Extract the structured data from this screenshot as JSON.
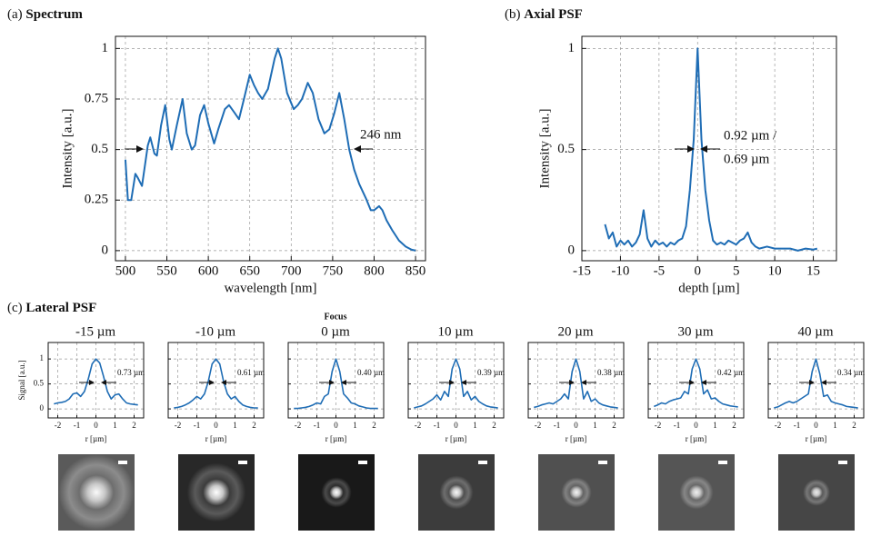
{
  "chart_data": [
    {
      "type": "line",
      "label": "(a)",
      "title": "Spectrum",
      "xlabel": "wavelength [nm]",
      "ylabel": "Intensity [a.u.]",
      "color": "#1f6db5",
      "grid": true,
      "x": [
        500,
        503,
        507,
        512,
        515,
        520,
        527,
        530,
        535,
        538,
        543,
        548,
        553,
        556,
        562,
        569,
        574,
        580,
        584,
        590,
        595,
        600,
        607,
        612,
        620,
        625,
        632,
        637,
        643,
        650,
        655,
        660,
        665,
        672,
        680,
        684,
        688,
        695,
        703,
        708,
        713,
        720,
        726,
        733,
        740,
        746,
        752,
        758,
        764,
        770,
        776,
        782,
        790,
        796,
        800,
        806,
        810,
        815,
        822,
        830,
        838,
        845,
        850
      ],
      "values": [
        0.45,
        0.25,
        0.25,
        0.38,
        0.36,
        0.32,
        0.52,
        0.56,
        0.48,
        0.47,
        0.62,
        0.72,
        0.55,
        0.5,
        0.62,
        0.75,
        0.58,
        0.5,
        0.52,
        0.67,
        0.72,
        0.63,
        0.53,
        0.6,
        0.7,
        0.72,
        0.68,
        0.65,
        0.75,
        0.87,
        0.82,
        0.78,
        0.75,
        0.8,
        0.95,
        1.0,
        0.95,
        0.78,
        0.7,
        0.72,
        0.75,
        0.83,
        0.78,
        0.65,
        0.58,
        0.6,
        0.68,
        0.78,
        0.65,
        0.5,
        0.4,
        0.33,
        0.26,
        0.2,
        0.2,
        0.22,
        0.2,
        0.15,
        0.1,
        0.05,
        0.02,
        0.005,
        0
      ],
      "xlim": [
        488,
        862
      ],
      "xticks": [
        500,
        550,
        600,
        650,
        700,
        750,
        800,
        850
      ],
      "ylim": [
        -0.05,
        1.06
      ],
      "yticks": [
        0,
        0.25,
        0.5,
        0.75,
        1
      ],
      "annotations": [
        "246 nm"
      ]
    },
    {
      "type": "line",
      "label": "(b)",
      "title": "Axial PSF",
      "xlabel": "depth [µm]",
      "ylabel": "Intensity [a.u.]",
      "color": "#1f6db5",
      "grid": true,
      "x": [
        -12,
        -11.5,
        -11,
        -10.5,
        -10,
        -9.5,
        -9,
        -8.5,
        -8,
        -7.5,
        -7,
        -6.5,
        -6,
        -5.5,
        -5,
        -4.5,
        -4,
        -3.5,
        -3,
        -2.5,
        -2,
        -1.5,
        -1,
        -0.5,
        0,
        0.5,
        1,
        1.5,
        2,
        2.5,
        3,
        3.5,
        4,
        4.5,
        5,
        5.5,
        6,
        6.5,
        7,
        7.5,
        8,
        9,
        10,
        11,
        12,
        13,
        14,
        15,
        15.5
      ],
      "values": [
        0.13,
        0.06,
        0.09,
        0.02,
        0.05,
        0.03,
        0.05,
        0.02,
        0.04,
        0.08,
        0.2,
        0.06,
        0.02,
        0.05,
        0.03,
        0.04,
        0.02,
        0.04,
        0.03,
        0.05,
        0.06,
        0.12,
        0.3,
        0.55,
        1.0,
        0.55,
        0.3,
        0.15,
        0.05,
        0.03,
        0.04,
        0.03,
        0.05,
        0.04,
        0.03,
        0.05,
        0.06,
        0.09,
        0.04,
        0.02,
        0.01,
        0.02,
        0.01,
        0.01,
        0.01,
        0,
        0.01,
        0.005,
        0.01
      ],
      "xlim": [
        -15,
        18
      ],
      "xticks": [
        -15,
        -10,
        -5,
        0,
        5,
        10,
        15
      ],
      "ylim": [
        -0.05,
        1.06
      ],
      "yticks": [
        0,
        0.5,
        1
      ],
      "annotations": [
        "0.92 µm /",
        "0.69 µm"
      ]
    },
    {
      "type": "line",
      "label": "(c)",
      "group_title": "Lateral PSF",
      "title": "-15 µm",
      "xlabel": "r [µm]",
      "ylabel": "Signal [a.u.]",
      "color": "#1f6db5",
      "grid": true,
      "ytick_labels": true,
      "x": [
        -2.2,
        -2,
        -1.8,
        -1.6,
        -1.4,
        -1.2,
        -1,
        -0.8,
        -0.6,
        -0.4,
        -0.2,
        0,
        0.2,
        0.4,
        0.6,
        0.8,
        1,
        1.2,
        1.4,
        1.6,
        1.8,
        2,
        2.2
      ],
      "values": [
        0.1,
        0.12,
        0.13,
        0.15,
        0.2,
        0.3,
        0.32,
        0.25,
        0.35,
        0.6,
        0.9,
        1.0,
        0.92,
        0.65,
        0.35,
        0.2,
        0.28,
        0.3,
        0.2,
        0.12,
        0.1,
        0.09,
        0.08
      ],
      "xlim": [
        -2.5,
        2.5
      ],
      "xticks": [
        -2,
        -1,
        0,
        1,
        2
      ],
      "ylim": [
        -0.18,
        1.33
      ],
      "yticks": [
        0,
        0.5,
        1
      ],
      "annotations": [
        "0.73 µm"
      ]
    },
    {
      "type": "line",
      "title": "-10 µm",
      "xlabel": "r [µm]",
      "color": "#1f6db5",
      "grid": true,
      "ytick_labels": false,
      "x": [
        -2.2,
        -2,
        -1.8,
        -1.6,
        -1.4,
        -1.2,
        -1,
        -0.8,
        -0.6,
        -0.4,
        -0.2,
        0,
        0.2,
        0.4,
        0.6,
        0.8,
        1,
        1.2,
        1.4,
        1.6,
        1.8,
        2,
        2.2
      ],
      "values": [
        0.02,
        0.03,
        0.05,
        0.08,
        0.12,
        0.18,
        0.25,
        0.2,
        0.3,
        0.55,
        0.9,
        1.0,
        0.9,
        0.55,
        0.3,
        0.2,
        0.25,
        0.15,
        0.08,
        0.05,
        0.03,
        0.02,
        0.02
      ],
      "xlim": [
        -2.5,
        2.5
      ],
      "xticks": [
        -2,
        -1,
        0,
        1,
        2
      ],
      "ylim": [
        -0.18,
        1.33
      ],
      "yticks": [
        0,
        0.5,
        1
      ],
      "annotations": [
        "0.61 µm"
      ]
    },
    {
      "type": "line",
      "heading": "Focus",
      "title": "0 µm",
      "xlabel": "r [µm]",
      "color": "#1f6db5",
      "grid": true,
      "ytick_labels": false,
      "x": [
        -2.2,
        -2,
        -1.8,
        -1.6,
        -1.4,
        -1.2,
        -1,
        -0.8,
        -0.6,
        -0.4,
        -0.2,
        0,
        0.2,
        0.4,
        0.6,
        0.8,
        1,
        1.2,
        1.4,
        1.6,
        1.8,
        2,
        2.2
      ],
      "values": [
        0.01,
        0.01,
        0.02,
        0.03,
        0.05,
        0.08,
        0.12,
        0.1,
        0.25,
        0.3,
        0.75,
        1.0,
        0.75,
        0.3,
        0.22,
        0.12,
        0.1,
        0.06,
        0.04,
        0.02,
        0.01,
        0.01,
        0.01
      ],
      "xlim": [
        -2.5,
        2.5
      ],
      "xticks": [
        -2,
        -1,
        0,
        1,
        2
      ],
      "ylim": [
        -0.18,
        1.33
      ],
      "yticks": [
        0,
        0.5,
        1
      ],
      "annotations": [
        "0.40 µm"
      ]
    },
    {
      "type": "line",
      "title": "10 µm",
      "xlabel": "r [µm]",
      "color": "#1f6db5",
      "grid": true,
      "ytick_labels": false,
      "x": [
        -2.2,
        -2,
        -1.8,
        -1.6,
        -1.4,
        -1.2,
        -1,
        -0.8,
        -0.6,
        -0.4,
        -0.2,
        0,
        0.2,
        0.4,
        0.6,
        0.8,
        1,
        1.2,
        1.4,
        1.6,
        1.8,
        2,
        2.2
      ],
      "values": [
        0.02,
        0.04,
        0.06,
        0.1,
        0.15,
        0.2,
        0.28,
        0.18,
        0.35,
        0.25,
        0.8,
        1.0,
        0.8,
        0.25,
        0.35,
        0.18,
        0.25,
        0.15,
        0.1,
        0.06,
        0.04,
        0.03,
        0.02
      ],
      "xlim": [
        -2.5,
        2.5
      ],
      "xticks": [
        -2,
        -1,
        0,
        1,
        2
      ],
      "ylim": [
        -0.18,
        1.33
      ],
      "yticks": [
        0,
        0.5,
        1
      ],
      "annotations": [
        "0.39 µm"
      ]
    },
    {
      "type": "line",
      "title": "20 µm",
      "xlabel": "r [µm]",
      "color": "#1f6db5",
      "grid": true,
      "ytick_labels": false,
      "x": [
        -2.2,
        -2,
        -1.8,
        -1.6,
        -1.4,
        -1.2,
        -1,
        -0.8,
        -0.6,
        -0.4,
        -0.2,
        0,
        0.2,
        0.4,
        0.6,
        0.8,
        1,
        1.2,
        1.4,
        1.6,
        1.8,
        2,
        2.2
      ],
      "values": [
        0.03,
        0.05,
        0.08,
        0.1,
        0.12,
        0.1,
        0.15,
        0.2,
        0.3,
        0.2,
        0.75,
        1.0,
        0.75,
        0.2,
        0.35,
        0.15,
        0.2,
        0.12,
        0.08,
        0.06,
        0.04,
        0.03,
        0.02
      ],
      "xlim": [
        -2.5,
        2.5
      ],
      "xticks": [
        -2,
        -1,
        0,
        1,
        2
      ],
      "ylim": [
        -0.18,
        1.33
      ],
      "yticks": [
        0,
        0.5,
        1
      ],
      "annotations": [
        "0.38 µm"
      ]
    },
    {
      "type": "line",
      "title": "30 µm",
      "xlabel": "r [µm]",
      "color": "#1f6db5",
      "grid": true,
      "ytick_labels": false,
      "x": [
        -2.2,
        -2,
        -1.8,
        -1.6,
        -1.4,
        -1.2,
        -1,
        -0.8,
        -0.6,
        -0.4,
        -0.2,
        0,
        0.2,
        0.4,
        0.6,
        0.8,
        1,
        1.2,
        1.4,
        1.6,
        1.8,
        2,
        2.2
      ],
      "values": [
        0.05,
        0.08,
        0.12,
        0.1,
        0.15,
        0.18,
        0.2,
        0.22,
        0.35,
        0.3,
        0.8,
        1.0,
        0.8,
        0.3,
        0.38,
        0.2,
        0.22,
        0.15,
        0.1,
        0.08,
        0.06,
        0.05,
        0.04
      ],
      "xlim": [
        -2.5,
        2.5
      ],
      "xticks": [
        -2,
        -1,
        0,
        1,
        2
      ],
      "ylim": [
        -0.18,
        1.33
      ],
      "yticks": [
        0,
        0.5,
        1
      ],
      "annotations": [
        "0.42 µm"
      ]
    },
    {
      "type": "line",
      "title": "40 µm",
      "xlabel": "r [µm]",
      "color": "#1f6db5",
      "grid": true,
      "ytick_labels": false,
      "x": [
        -2.2,
        -2,
        -1.8,
        -1.6,
        -1.4,
        -1.2,
        -1,
        -0.8,
        -0.6,
        -0.4,
        -0.2,
        0,
        0.2,
        0.4,
        0.6,
        0.8,
        1,
        1.2,
        1.4,
        1.6,
        1.8,
        2,
        2.2
      ],
      "values": [
        0.02,
        0.04,
        0.08,
        0.12,
        0.15,
        0.12,
        0.15,
        0.2,
        0.25,
        0.3,
        0.75,
        1.0,
        0.7,
        0.25,
        0.28,
        0.15,
        0.12,
        0.1,
        0.08,
        0.05,
        0.04,
        0.03,
        0.02
      ],
      "xlim": [
        -2.5,
        2.5
      ],
      "xticks": [
        -2,
        -1,
        0,
        1,
        2
      ],
      "ylim": [
        -0.18,
        1.33
      ],
      "yticks": [
        0,
        0.5,
        1
      ],
      "annotations": [
        "0.34 µm"
      ]
    }
  ]
}
